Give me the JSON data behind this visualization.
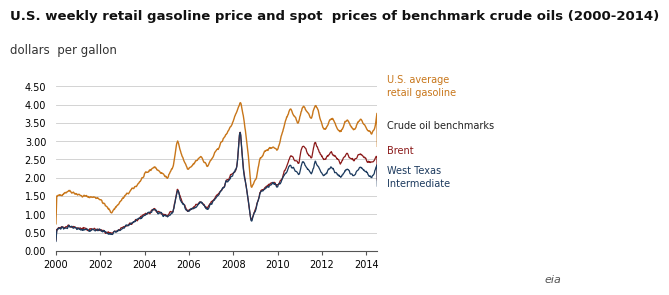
{
  "title": "U.S. weekly retail gasoline price and spot  prices of benchmark crude oils (2000-2014)",
  "subtitle": "dollars  per gallon",
  "title_fontsize": 9.5,
  "subtitle_fontsize": 8.5,
  "gasoline_color": "#C8761A",
  "brent_color": "#8B1A1A",
  "wti_color": "#1C3A5E",
  "background_color": "#FFFFFF",
  "grid_color": "#CCCCCC",
  "ylim": [
    0.0,
    4.5
  ],
  "yticks": [
    0.0,
    0.5,
    1.0,
    1.5,
    2.0,
    2.5,
    3.0,
    3.5,
    4.0,
    4.5
  ],
  "xtick_years": [
    2000,
    2002,
    2004,
    2006,
    2008,
    2010,
    2012,
    2014
  ],
  "legend_gasoline": "U.S. average\nretail gasoline",
  "legend_header": "Crude oil benchmarks",
  "legend_brent": "Brent",
  "legend_wti": "West Texas\nIntermediate"
}
